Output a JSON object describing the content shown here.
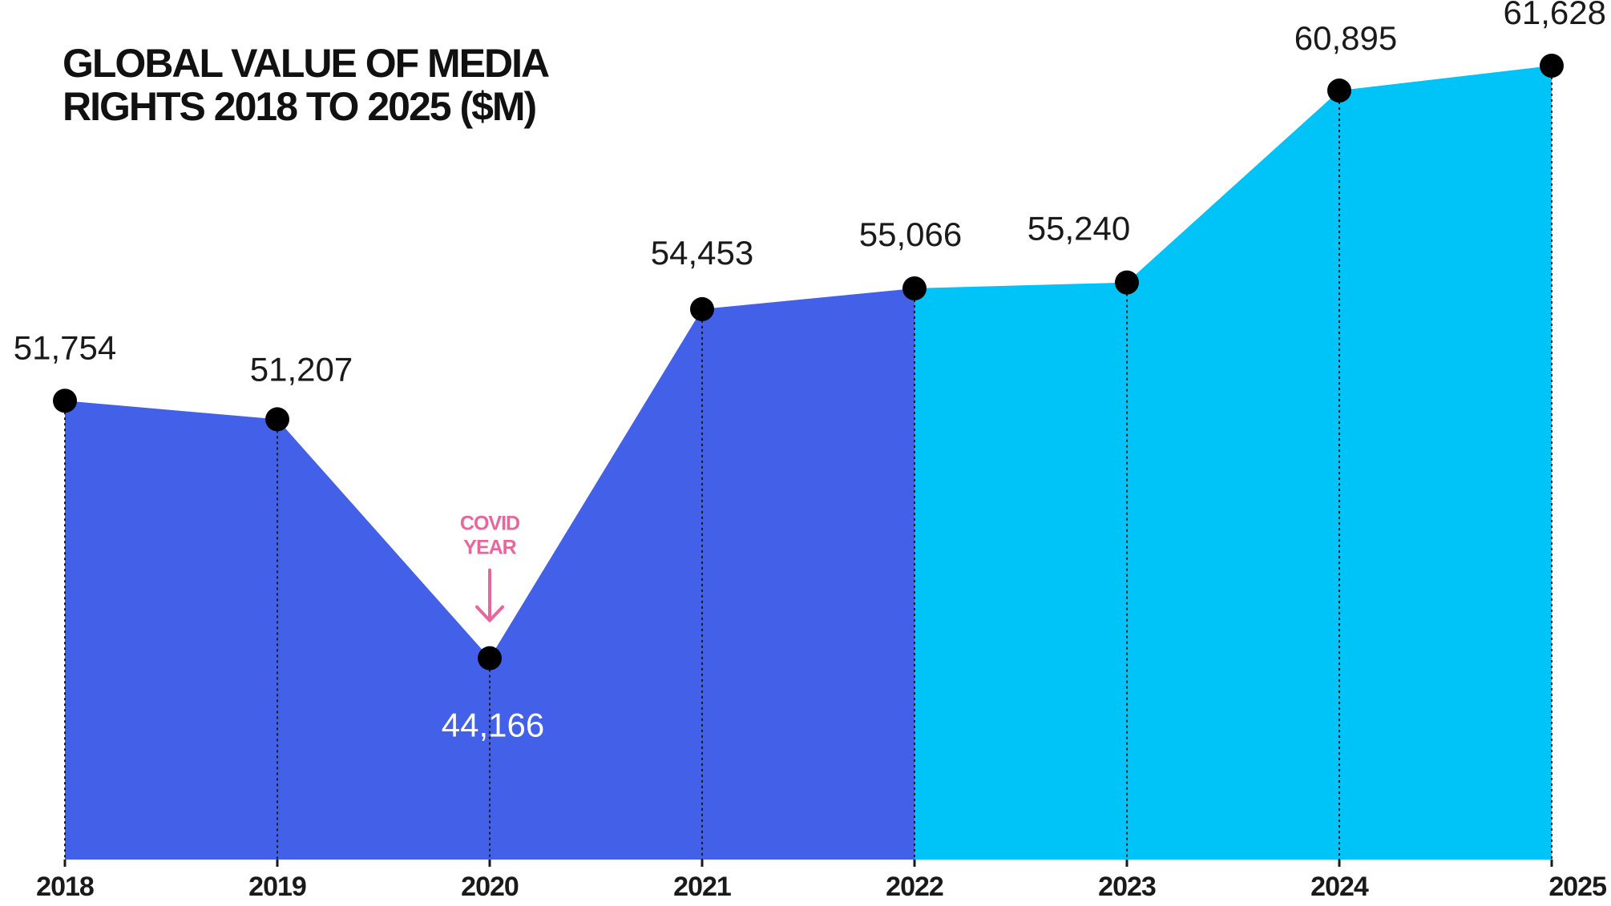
{
  "title_lines": [
    "GLOBAL VALUE OF MEDIA",
    "RIGHTS 2018 TO 2025 ($M)"
  ],
  "colors": {
    "historical_fill": "#4361e8",
    "projected_fill": "#00c4f8",
    "point": "#000000",
    "annotation": "#e8669b"
  },
  "chart_data": {
    "type": "area",
    "title": "GLOBAL VALUE OF MEDIA RIGHTS 2018 TO 2025 ($M)",
    "xlabel": "",
    "ylabel": "",
    "categories": [
      "2018",
      "2019",
      "2020",
      "2021",
      "2022",
      "2023",
      "2024",
      "2025"
    ],
    "values": [
      51754,
      51207,
      44166,
      54453,
      55066,
      55240,
      60895,
      61628
    ],
    "value_labels": [
      "51,754",
      "51,207",
      "44,166",
      "54,453",
      "55,066",
      "55,240",
      "60,895",
      "61,628"
    ],
    "color_split_after": "2022",
    "grid": false,
    "legend": "none",
    "annotation": {
      "category": "2020",
      "lines": [
        "COVID",
        "YEAR"
      ]
    }
  }
}
